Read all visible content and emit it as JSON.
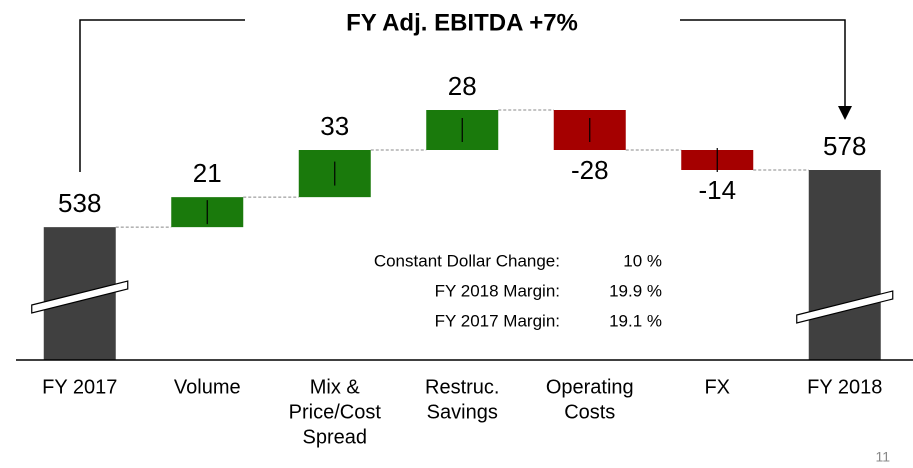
{
  "chart_data": {
    "type": "waterfall",
    "title": "FY Adj. EBITDA +7%",
    "categories": [
      [
        "FY 2017"
      ],
      [
        "Volume"
      ],
      [
        "Mix &",
        "Price/Cost",
        "Spread"
      ],
      [
        "Restruc.",
        "Savings"
      ],
      [
        "Operating",
        "Costs"
      ],
      [
        "FX"
      ],
      [
        "FY 2018"
      ]
    ],
    "values": [
      538,
      21,
      33,
      28,
      -28,
      -14,
      578
    ],
    "totals": [
      0,
      6
    ],
    "ylim": [
      445,
      655
    ],
    "axis_break": true,
    "colors": {
      "total": "#404040",
      "increase": "#1a7a0c",
      "decrease": "#a50000"
    },
    "stats": [
      [
        "Constant Dollar Change:",
        "10 %"
      ],
      [
        "FY 2018 Margin:",
        "19.9 %"
      ],
      [
        "FY 2017 Margin:",
        "19.1 %"
      ]
    ],
    "page_number": "11"
  }
}
